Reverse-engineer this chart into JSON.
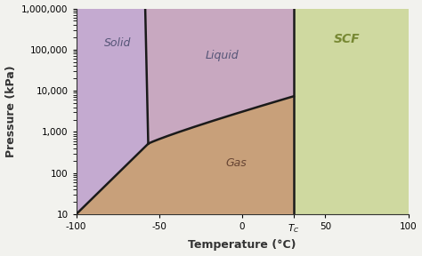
{
  "xlabel": "Temperature (°C)",
  "ylabel": "Pressure (kPa)",
  "bg_color": "#f2f2ee",
  "solid_color": "#c4aad0",
  "liquid_color": "#c8a8c0",
  "gas_color": "#c8a07a",
  "scf_color": "#cfd9a0",
  "line_color": "#1a1a1a",
  "tc": 31,
  "pc": 7380,
  "triple_T": -56.6,
  "triple_P": 518,
  "xlim": [
    -100,
    100
  ],
  "ylim": [
    10,
    1000000
  ]
}
